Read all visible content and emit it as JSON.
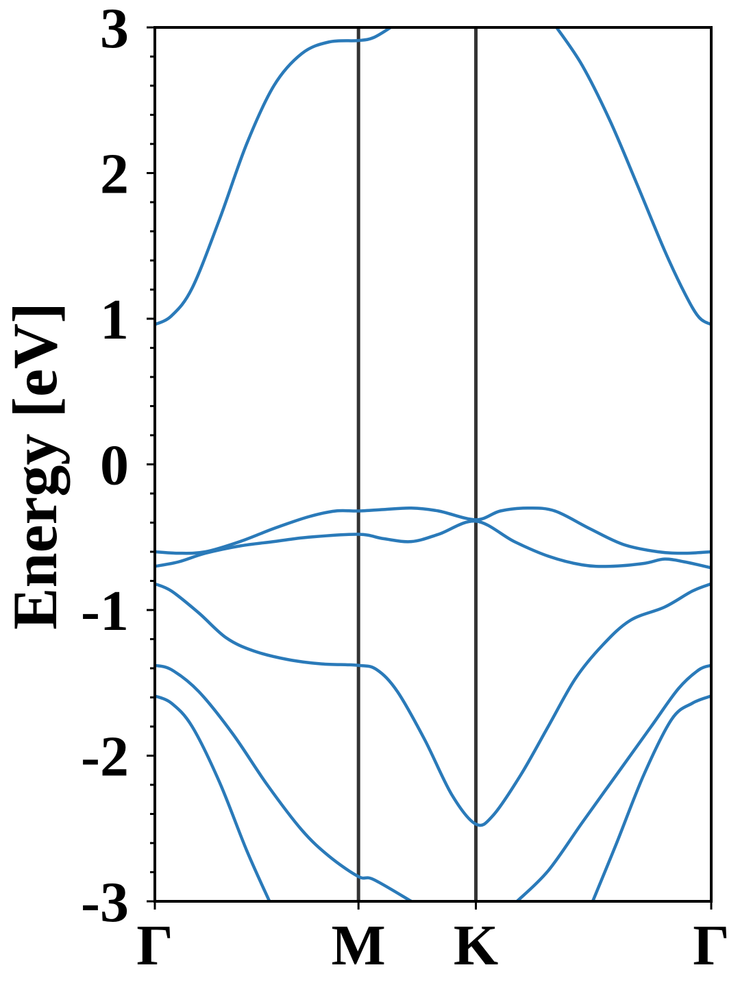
{
  "chart_data": {
    "type": "line",
    "ylabel": "Energy [eV]",
    "xlim": [
      0,
      1
    ],
    "ylim": [
      -3,
      3
    ],
    "yticks": [
      -3,
      -2,
      -1,
      0,
      1,
      2,
      3
    ],
    "yminorticks": [
      -2.8,
      -2.6,
      -2.4,
      -2.2,
      -1.8,
      -1.6,
      -1.4,
      -1.2,
      -0.8,
      -0.6,
      -0.4,
      -0.2,
      0.2,
      0.4,
      0.6,
      0.8,
      1.2,
      1.4,
      1.6,
      1.8,
      2.2,
      2.4,
      2.6,
      2.8
    ],
    "xticks": [
      {
        "value": 0,
        "label": "Γ"
      },
      {
        "value": 0.366,
        "label": "M"
      },
      {
        "value": 0.577,
        "label": "K"
      },
      {
        "value": 1,
        "label": "Γ"
      }
    ],
    "vlines_color": "#333333",
    "series": [
      {
        "color": "#2a7ab9",
        "x": [
          0,
          0.03,
          0.067,
          0.116,
          0.165,
          0.214,
          0.264,
          0.313,
          0.366,
          0.393,
          0.424,
          0.577,
          0.722,
          0.768,
          0.818,
          0.867,
          0.916,
          0.953,
          0.978,
          1.0
        ],
        "values": [
          0.96,
          1.02,
          1.21,
          1.68,
          2.2,
          2.6,
          2.82,
          2.9,
          2.91,
          2.93,
          3.0,
          null,
          3.0,
          2.74,
          2.36,
          1.92,
          1.47,
          1.17,
          1.01,
          0.96
        ]
      },
      {
        "color": "#2a7ab9",
        "x": [
          0,
          0.042,
          0.091,
          0.153,
          0.214,
          0.276,
          0.325,
          0.366,
          0.411,
          0.461,
          0.51,
          0.577,
          0.621,
          0.67,
          0.719,
          0.781,
          0.842,
          0.904,
          0.953,
          1.0
        ],
        "values": [
          -0.6,
          -0.61,
          -0.6,
          -0.53,
          -0.44,
          -0.36,
          -0.32,
          -0.32,
          -0.31,
          -0.3,
          -0.32,
          -0.38,
          -0.32,
          -0.3,
          -0.32,
          -0.44,
          -0.55,
          -0.6,
          -0.61,
          -0.6
        ]
      },
      {
        "color": "#2a7ab9",
        "x": [
          0,
          0.042,
          0.091,
          0.153,
          0.214,
          0.276,
          0.366,
          0.411,
          0.461,
          0.51,
          0.577,
          0.646,
          0.707,
          0.768,
          0.818,
          0.879,
          0.916,
          0.953,
          1.0
        ],
        "values": [
          -0.7,
          -0.67,
          -0.61,
          -0.56,
          -0.53,
          -0.5,
          -0.48,
          -0.51,
          -0.53,
          -0.48,
          -0.39,
          -0.53,
          -0.63,
          -0.69,
          -0.7,
          -0.68,
          -0.65,
          -0.67,
          -0.71
        ]
      },
      {
        "color": "#2a7ab9",
        "x": [
          0,
          0.03,
          0.079,
          0.128,
          0.177,
          0.239,
          0.3,
          0.366,
          0.399,
          0.436,
          0.485,
          0.534,
          0.577,
          0.608,
          0.658,
          0.707,
          0.756,
          0.805,
          0.855,
          0.916,
          0.966,
          1.0
        ],
        "values": [
          -0.82,
          -0.87,
          -1.02,
          -1.19,
          -1.28,
          -1.34,
          -1.37,
          -1.38,
          -1.41,
          -1.56,
          -1.89,
          -2.27,
          -2.47,
          -2.41,
          -2.13,
          -1.8,
          -1.47,
          -1.24,
          -1.07,
          -0.98,
          -0.87,
          -0.82
        ]
      },
      {
        "color": "#2a7ab9",
        "x": [
          0,
          0.03,
          0.079,
          0.14,
          0.202,
          0.264,
          0.313,
          0.366,
          0.393,
          0.461,
          0.577,
          0.651,
          0.707,
          0.768,
          0.83,
          0.892,
          0.941,
          0.978,
          1.0
        ],
        "values": [
          -1.38,
          -1.41,
          -1.56,
          -1.85,
          -2.2,
          -2.51,
          -2.69,
          -2.83,
          -2.85,
          -3.0,
          null,
          -3.0,
          -2.79,
          -2.46,
          -2.13,
          -1.8,
          -1.54,
          -1.41,
          -1.38
        ]
      },
      {
        "color": "#2a7ab9",
        "x": [
          0,
          0.03,
          0.067,
          0.116,
          0.165,
          0.206,
          0.5,
          0.787,
          0.83,
          0.879,
          0.929,
          0.966,
          1.0
        ],
        "values": [
          -1.59,
          -1.64,
          -1.8,
          -2.18,
          -2.65,
          -3.0,
          null,
          -3.0,
          -2.6,
          -2.13,
          -1.75,
          -1.64,
          -1.59
        ]
      }
    ]
  }
}
